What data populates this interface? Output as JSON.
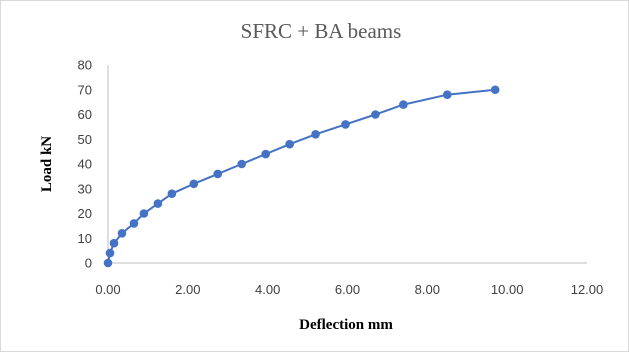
{
  "chart_data": {
    "type": "scatter",
    "title": "SFRC + BA beams",
    "xlabel": "Deflection mm",
    "ylabel": "Load kN",
    "xlim": [
      0,
      12
    ],
    "ylim": [
      0,
      80
    ],
    "x_ticks": [
      "0.00",
      "2.00",
      "4.00",
      "6.00",
      "8.00",
      "10.00",
      "12.00"
    ],
    "y_ticks": [
      "0",
      "10",
      "20",
      "30",
      "40",
      "50",
      "60",
      "70",
      "80"
    ],
    "grid": false,
    "legend": "none",
    "series": [
      {
        "x": [
          0.0,
          0.05,
          0.15,
          0.35,
          0.65,
          0.9,
          1.25,
          1.6,
          2.15,
          2.75,
          3.35,
          3.95,
          4.55,
          5.2,
          5.95,
          6.7,
          7.4,
          8.5,
          9.7
        ],
        "y": [
          0,
          4,
          8,
          12,
          16,
          20,
          24,
          28,
          32,
          36,
          40,
          44,
          48,
          52,
          56,
          60,
          64,
          68,
          70
        ]
      }
    ],
    "colors": {
      "series": "#4472c4",
      "axis": "#bfbfbf"
    }
  }
}
